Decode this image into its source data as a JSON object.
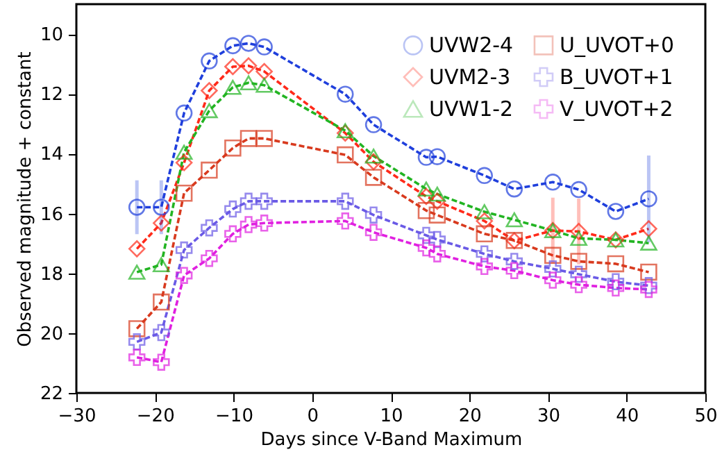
{
  "chart_data": {
    "type": "line",
    "xlabel": "Days since V-Band Maximum",
    "ylabel": "Observed magnitude + constant",
    "x": [
      -22.3,
      -19.2,
      -16.3,
      -13.1,
      -10.1,
      -8.1,
      -6.1,
      4.2,
      7.8,
      14.5,
      15.9,
      21.9,
      25.7,
      30.6,
      33.9,
      38.6,
      42.8
    ],
    "series": [
      {
        "name": "UVW2-4",
        "color": "#1f3fdc",
        "marker": "circle",
        "values": [
          15.79,
          15.79,
          12.64,
          10.9,
          10.39,
          10.31,
          10.43,
          12.01,
          13.03,
          14.12,
          14.1,
          14.73,
          15.18,
          14.95,
          15.2,
          15.93,
          15.51
        ],
        "errors": [
          0.9,
          0.9,
          null,
          null,
          null,
          null,
          null,
          null,
          null,
          null,
          null,
          null,
          null,
          null,
          null,
          null,
          1.45
        ]
      },
      {
        "name": "UVM2-3",
        "color": "#ff2a1a",
        "marker": "diamond",
        "values": [
          17.18,
          16.32,
          14.3,
          11.89,
          11.09,
          11.06,
          11.25,
          13.31,
          14.27,
          15.43,
          15.59,
          16.25,
          16.91,
          16.57,
          16.6,
          16.88,
          16.51
        ],
        "errors": [
          null,
          null,
          null,
          null,
          null,
          null,
          null,
          null,
          null,
          null,
          null,
          null,
          null,
          1.1,
          1.1,
          null,
          null
        ]
      },
      {
        "name": "UVW1-2",
        "color": "#22b422",
        "marker": "triangle",
        "values": [
          17.96,
          17.71,
          13.95,
          12.56,
          11.78,
          11.63,
          11.71,
          13.23,
          14.08,
          15.18,
          15.35,
          15.94,
          16.21,
          16.57,
          16.83,
          16.88,
          16.99
        ]
      },
      {
        "name": "U_UVOT+0",
        "color": "#d83a1e",
        "marker": "square",
        "values": [
          19.85,
          18.96,
          15.32,
          14.55,
          13.81,
          13.49,
          13.49,
          14.04,
          14.79,
          15.9,
          16.05,
          16.68,
          16.9,
          17.4,
          17.6,
          17.68,
          17.96
        ]
      },
      {
        "name": "B_UVOT+1",
        "color": "#6a5ae6",
        "marker": "cross",
        "values": [
          20.29,
          19.98,
          17.22,
          16.48,
          15.85,
          15.59,
          15.59,
          15.59,
          16.05,
          16.73,
          16.87,
          17.35,
          17.6,
          17.85,
          18.03,
          18.28,
          18.41
        ]
      },
      {
        "name": "V_UVOT+2",
        "color": "#e020e0",
        "marker": "cross",
        "values": [
          20.81,
          20.97,
          18.07,
          17.5,
          16.68,
          16.37,
          16.32,
          16.25,
          16.63,
          17.15,
          17.35,
          17.77,
          17.91,
          18.23,
          18.38,
          18.49,
          18.54
        ]
      }
    ],
    "xlim": [
      -30,
      50
    ],
    "xticks": [
      -30,
      -20,
      -10,
      0,
      10,
      20,
      30,
      40,
      50
    ],
    "ylim": [
      22,
      9.0
    ],
    "yticks": [
      10,
      12,
      14,
      16,
      18,
      20,
      22
    ],
    "line_style": "dashed",
    "grid": false,
    "legend": "top right"
  }
}
